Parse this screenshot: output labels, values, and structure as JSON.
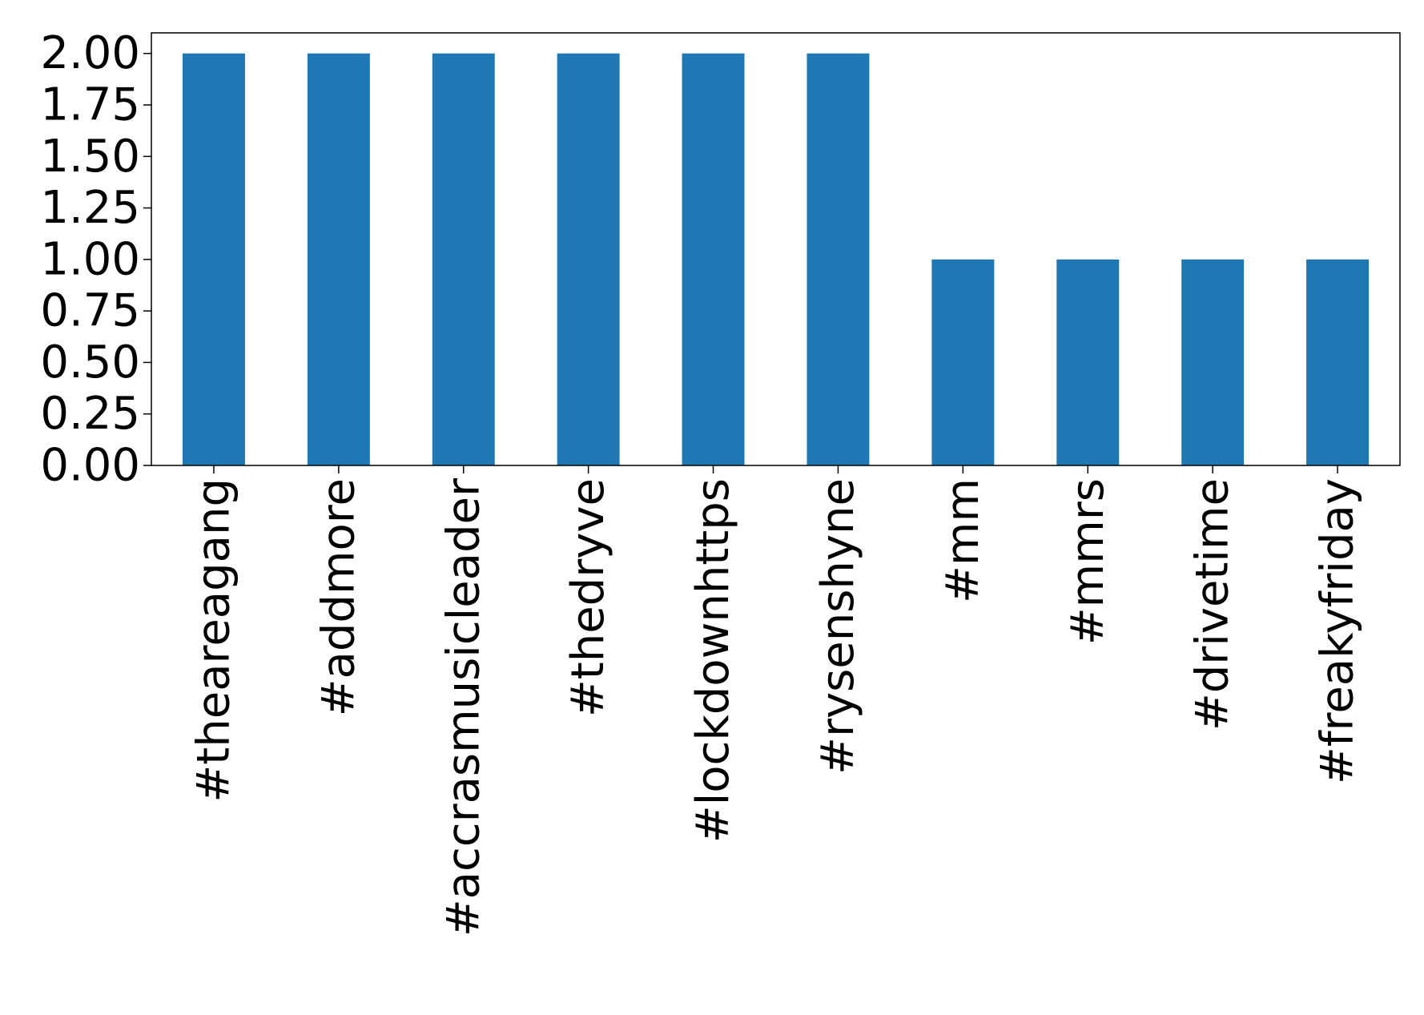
{
  "chart_data": {
    "type": "bar",
    "categories": [
      "#theareagang",
      "#addmore",
      "#accrasmusicleader",
      "#thedryve",
      "#lockdownhttps",
      "#rysenshyne",
      "#mm",
      "#mmrs",
      "#drivetime",
      "#freakyfriday"
    ],
    "values": [
      2,
      2,
      2,
      2,
      2,
      2,
      1,
      1,
      1,
      1
    ],
    "color": "#1f77b4",
    "ylim": [
      0,
      2.1
    ],
    "yticks": [
      {
        "value": 0,
        "label": "0.00"
      },
      {
        "value": 0.25,
        "label": "0.25"
      },
      {
        "value": 0.5,
        "label": "0.50"
      },
      {
        "value": 0.75,
        "label": "0.75"
      },
      {
        "value": 1,
        "label": "1.00"
      },
      {
        "value": 1.25,
        "label": "1.25"
      },
      {
        "value": 1.5,
        "label": "1.50"
      },
      {
        "value": 1.75,
        "label": "1.75"
      },
      {
        "value": 2,
        "label": "2.00"
      }
    ],
    "grid": false
  }
}
